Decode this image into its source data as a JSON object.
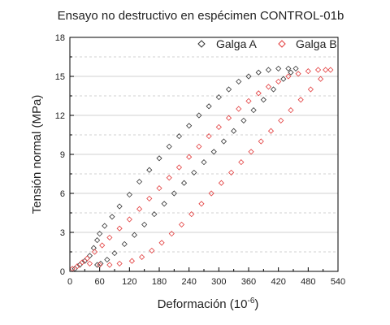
{
  "chart_data": {
    "type": "scatter",
    "title": "Ensayo no destructivo en espécimen CONTROL-01b",
    "xlabel": "Deformación (10",
    "xlabel_exponent": "-6",
    "xlabel_suffix": ")",
    "ylabel": "Tensión normal (MPa)",
    "xlim": [
      0,
      540
    ],
    "ylim": [
      0,
      18
    ],
    "x_ticks": [
      0,
      60,
      120,
      180,
      240,
      300,
      360,
      420,
      480,
      540
    ],
    "y_ticks": [
      0,
      3,
      6,
      9,
      12,
      15,
      18
    ],
    "grid": "horizontal-dashed",
    "legend_position": "top-right",
    "marker": "diamond-open",
    "series": [
      {
        "name": "Galga A",
        "color": "#333333",
        "points": [
          [
            10,
            0.2
          ],
          [
            20,
            0.5
          ],
          [
            30,
            0.8
          ],
          [
            40,
            1.2
          ],
          [
            48,
            1.8
          ],
          [
            55,
            2.4
          ],
          [
            60,
            2.9
          ],
          [
            70,
            3.5
          ],
          [
            85,
            4.2
          ],
          [
            100,
            5.0
          ],
          [
            120,
            5.9
          ],
          [
            140,
            6.9
          ],
          [
            160,
            7.8
          ],
          [
            180,
            8.7
          ],
          [
            200,
            9.6
          ],
          [
            220,
            10.4
          ],
          [
            240,
            11.2
          ],
          [
            260,
            12.0
          ],
          [
            280,
            12.7
          ],
          [
            300,
            13.4
          ],
          [
            320,
            14.0
          ],
          [
            340,
            14.6
          ],
          [
            360,
            15.0
          ],
          [
            380,
            15.3
          ],
          [
            400,
            15.5
          ],
          [
            420,
            15.6
          ],
          [
            440,
            15.6
          ],
          [
            455,
            15.6
          ],
          [
            445,
            15.3
          ],
          [
            430,
            14.8
          ],
          [
            410,
            14.0
          ],
          [
            390,
            13.2
          ],
          [
            370,
            12.4
          ],
          [
            350,
            11.6
          ],
          [
            330,
            10.8
          ],
          [
            310,
            10.0
          ],
          [
            290,
            9.2
          ],
          [
            270,
            8.4
          ],
          [
            250,
            7.6
          ],
          [
            230,
            6.8
          ],
          [
            210,
            6.0
          ],
          [
            190,
            5.2
          ],
          [
            170,
            4.4
          ],
          [
            150,
            3.6
          ],
          [
            130,
            2.8
          ],
          [
            110,
            2.1
          ],
          [
            90,
            1.4
          ],
          [
            75,
            0.9
          ],
          [
            62,
            0.6
          ],
          [
            55,
            0.5
          ]
        ]
      },
      {
        "name": "Galga B",
        "color": "#e23b3b",
        "points": [
          [
            5,
            0.2
          ],
          [
            15,
            0.4
          ],
          [
            25,
            0.7
          ],
          [
            35,
            1.0
          ],
          [
            50,
            1.5
          ],
          [
            65,
            2.0
          ],
          [
            80,
            2.6
          ],
          [
            100,
            3.3
          ],
          [
            120,
            4.0
          ],
          [
            140,
            4.8
          ],
          [
            160,
            5.6
          ],
          [
            180,
            6.4
          ],
          [
            200,
            7.2
          ],
          [
            220,
            8.0
          ],
          [
            240,
            8.8
          ],
          [
            260,
            9.6
          ],
          [
            280,
            10.4
          ],
          [
            300,
            11.1
          ],
          [
            320,
            11.8
          ],
          [
            340,
            12.5
          ],
          [
            360,
            13.1
          ],
          [
            380,
            13.7
          ],
          [
            400,
            14.2
          ],
          [
            420,
            14.6
          ],
          [
            440,
            15.0
          ],
          [
            460,
            15.2
          ],
          [
            480,
            15.4
          ],
          [
            500,
            15.5
          ],
          [
            515,
            15.5
          ],
          [
            525,
            15.5
          ],
          [
            505,
            14.8
          ],
          [
            485,
            14.0
          ],
          [
            465,
            13.2
          ],
          [
            445,
            12.4
          ],
          [
            425,
            11.6
          ],
          [
            405,
            10.8
          ],
          [
            385,
            10.0
          ],
          [
            365,
            9.2
          ],
          [
            345,
            8.4
          ],
          [
            325,
            7.6
          ],
          [
            305,
            6.8
          ],
          [
            285,
            6.0
          ],
          [
            265,
            5.2
          ],
          [
            245,
            4.4
          ],
          [
            225,
            3.6
          ],
          [
            205,
            2.9
          ],
          [
            185,
            2.2
          ],
          [
            165,
            1.6
          ],
          [
            145,
            1.1
          ],
          [
            125,
            0.8
          ],
          [
            100,
            0.6
          ],
          [
            80,
            0.5
          ],
          [
            60,
            0.5
          ],
          [
            40,
            0.6
          ]
        ]
      }
    ]
  }
}
